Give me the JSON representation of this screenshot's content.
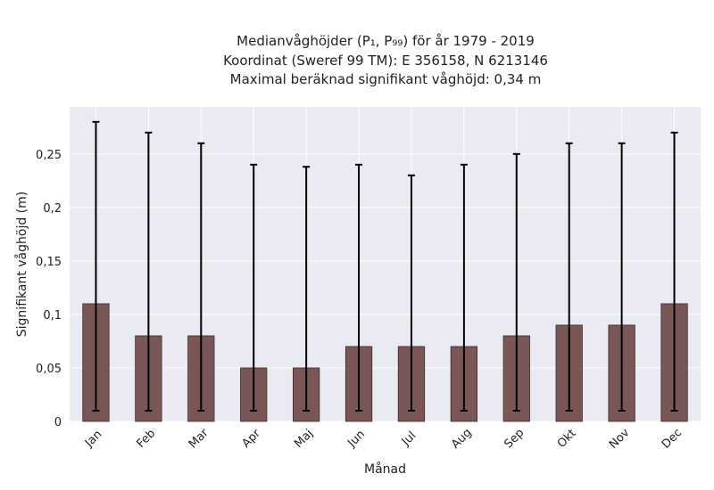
{
  "chart_data": {
    "type": "bar",
    "title_lines": [
      "Medianvåghöjder (P₁, P₉₉) för år 1979 - 2019",
      "Koordinat (Sweref 99 TM): E 356158, N 6213146",
      "Maximal beräknad signifikant våghöjd: 0,34 m"
    ],
    "xlabel": "Månad",
    "ylabel": "Signifikant våghöjd (m)",
    "categories": [
      "Jan",
      "Feb",
      "Mar",
      "Apr",
      "Maj",
      "Jun",
      "Jul",
      "Aug",
      "Sep",
      "Okt",
      "Nov",
      "Dec"
    ],
    "series": [
      {
        "values": [
          0.11,
          0.08,
          0.08,
          0.05,
          0.05,
          0.07,
          0.07,
          0.07,
          0.08,
          0.09,
          0.09,
          0.11
        ],
        "error_low": [
          0.01,
          0.01,
          0.01,
          0.01,
          0.01,
          0.01,
          0.01,
          0.01,
          0.01,
          0.01,
          0.01,
          0.01
        ],
        "error_high": [
          0.28,
          0.27,
          0.26,
          0.24,
          0.238,
          0.24,
          0.23,
          0.24,
          0.25,
          0.26,
          0.26,
          0.27
        ]
      }
    ],
    "yticks": [
      0,
      0.05,
      0.1,
      0.15,
      0.2,
      0.25
    ],
    "ytick_labels": [
      "0",
      "0,05",
      "0,1",
      "0,15",
      "0,2",
      "0,25"
    ],
    "ylim": [
      0,
      0.294
    ],
    "grid": true,
    "colors": {
      "bar": "#7b5656",
      "bar_edge": "#3d2b2b",
      "error": "#000000",
      "plot_bg": "#eaeaf2",
      "grid": "#ffffff"
    }
  }
}
